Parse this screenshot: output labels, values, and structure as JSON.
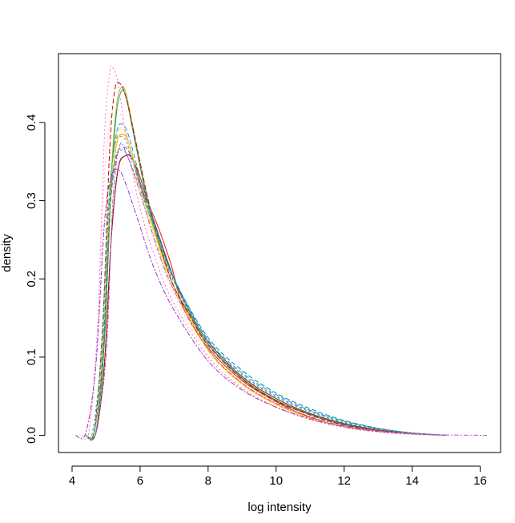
{
  "chart_data": {
    "type": "line",
    "title": "",
    "xlabel": "log intensity",
    "ylabel": "density",
    "xlim": [
      3.6,
      16.6
    ],
    "ylim": [
      -0.022,
      0.488
    ],
    "xticks": [
      4,
      6,
      8,
      10,
      12,
      14,
      16
    ],
    "yticks": [
      0.0,
      0.1,
      0.2,
      0.3,
      0.4
    ],
    "x_tick_labels": [
      "4",
      "6",
      "8",
      "10",
      "12",
      "14",
      "16"
    ],
    "y_tick_labels": [
      "0.0",
      "0.1",
      "0.2",
      "0.3",
      "0.4"
    ],
    "grid": false,
    "legend": "none",
    "series": [
      {
        "color": "#e41a1c",
        "dash": "none",
        "values": [
          [
            4.4,
            0
          ],
          [
            4.7,
            0.003
          ],
          [
            4.95,
            0.09
          ],
          [
            5.15,
            0.25
          ],
          [
            5.35,
            0.34
          ],
          [
            5.6,
            0.358
          ],
          [
            5.8,
            0.352
          ],
          [
            6.1,
            0.31
          ],
          [
            6.5,
            0.27
          ],
          [
            6.9,
            0.22
          ],
          [
            7.3,
            0.16
          ],
          [
            8,
            0.112
          ],
          [
            9,
            0.07
          ],
          [
            10,
            0.043
          ],
          [
            11,
            0.023
          ],
          [
            12,
            0.011
          ],
          [
            13,
            0.005
          ],
          [
            14,
            0.002
          ],
          [
            15,
            0
          ]
        ]
      },
      {
        "color": "#8b1a1a",
        "dash": "none",
        "values": [
          [
            4.4,
            0
          ],
          [
            4.7,
            0.003
          ],
          [
            4.95,
            0.09
          ],
          [
            5.15,
            0.25
          ],
          [
            5.35,
            0.34
          ],
          [
            5.55,
            0.357
          ],
          [
            5.75,
            0.355
          ],
          [
            6,
            0.33
          ],
          [
            6.4,
            0.275
          ],
          [
            7,
            0.2
          ],
          [
            7.5,
            0.155
          ],
          [
            8,
            0.12
          ],
          [
            9,
            0.075
          ],
          [
            10,
            0.047
          ],
          [
            11,
            0.028
          ],
          [
            12,
            0.015
          ],
          [
            13,
            0.007
          ],
          [
            14,
            0.003
          ],
          [
            15,
            0
          ]
        ]
      },
      {
        "color": "#9acd32",
        "dash": "none",
        "values": [
          [
            4.4,
            0
          ],
          [
            4.7,
            0.004
          ],
          [
            4.95,
            0.12
          ],
          [
            5.15,
            0.33
          ],
          [
            5.3,
            0.42
          ],
          [
            5.45,
            0.445
          ],
          [
            5.6,
            0.435
          ],
          [
            5.9,
            0.37
          ],
          [
            6.3,
            0.29
          ],
          [
            6.9,
            0.2
          ],
          [
            7.5,
            0.15
          ],
          [
            8,
            0.115
          ],
          [
            9,
            0.072
          ],
          [
            10,
            0.044
          ],
          [
            11,
            0.026
          ],
          [
            12,
            0.013
          ],
          [
            13,
            0.006
          ],
          [
            14,
            0.002
          ],
          [
            15,
            0
          ]
        ]
      },
      {
        "color": "#2e8b57",
        "dash": "none",
        "values": [
          [
            4.4,
            0
          ],
          [
            4.7,
            0.004
          ],
          [
            4.95,
            0.12
          ],
          [
            5.15,
            0.32
          ],
          [
            5.3,
            0.41
          ],
          [
            5.45,
            0.44
          ],
          [
            5.6,
            0.43
          ],
          [
            5.9,
            0.365
          ],
          [
            6.3,
            0.285
          ],
          [
            6.9,
            0.2
          ],
          [
            7.5,
            0.152
          ],
          [
            8,
            0.117
          ],
          [
            9,
            0.073
          ],
          [
            10,
            0.045
          ],
          [
            11,
            0.027
          ],
          [
            12,
            0.014
          ],
          [
            13,
            0.006
          ],
          [
            14,
            0.002
          ],
          [
            15,
            0
          ]
        ]
      },
      {
        "color": "#ffa500",
        "dash": "none",
        "values": [
          [
            4.4,
            0
          ],
          [
            4.65,
            0.004
          ],
          [
            4.9,
            0.1
          ],
          [
            5.1,
            0.28
          ],
          [
            5.3,
            0.37
          ],
          [
            5.5,
            0.385
          ],
          [
            5.7,
            0.37
          ],
          [
            6,
            0.32
          ],
          [
            6.5,
            0.25
          ],
          [
            7,
            0.19
          ],
          [
            8,
            0.11
          ],
          [
            9,
            0.066
          ],
          [
            10,
            0.04
          ],
          [
            11,
            0.022
          ],
          [
            12,
            0.011
          ],
          [
            13,
            0.005
          ],
          [
            14,
            0.002
          ],
          [
            15,
            0
          ]
        ]
      },
      {
        "color": "#d00000",
        "dash": "6,3",
        "values": [
          [
            4.4,
            0
          ],
          [
            4.65,
            0.005
          ],
          [
            4.9,
            0.14
          ],
          [
            5.1,
            0.36
          ],
          [
            5.25,
            0.44
          ],
          [
            5.4,
            0.45
          ],
          [
            5.6,
            0.43
          ],
          [
            5.9,
            0.37
          ],
          [
            6.3,
            0.29
          ],
          [
            6.9,
            0.2
          ],
          [
            7.5,
            0.15
          ],
          [
            8,
            0.115
          ],
          [
            9,
            0.072
          ],
          [
            10,
            0.044
          ],
          [
            11,
            0.026
          ],
          [
            12,
            0.013
          ],
          [
            13,
            0.006
          ],
          [
            14,
            0.002
          ],
          [
            15,
            0
          ]
        ]
      },
      {
        "color": "#1e90ff",
        "dash": "6,3",
        "values": [
          [
            4.4,
            0
          ],
          [
            4.65,
            0.004
          ],
          [
            4.9,
            0.12
          ],
          [
            5.1,
            0.31
          ],
          [
            5.3,
            0.385
          ],
          [
            5.45,
            0.398
          ],
          [
            5.65,
            0.385
          ],
          [
            6,
            0.33
          ],
          [
            6.5,
            0.26
          ],
          [
            7,
            0.2
          ],
          [
            8,
            0.122
          ],
          [
            9,
            0.08
          ],
          [
            10,
            0.052
          ],
          [
            11,
            0.032
          ],
          [
            12,
            0.018
          ],
          [
            13,
            0.009
          ],
          [
            14,
            0.003
          ],
          [
            15,
            0
          ]
        ]
      },
      {
        "color": "#ffd700",
        "dash": "6,3",
        "values": [
          [
            4.4,
            0
          ],
          [
            4.65,
            0.004
          ],
          [
            4.9,
            0.11
          ],
          [
            5.1,
            0.3
          ],
          [
            5.3,
            0.38
          ],
          [
            5.5,
            0.392
          ],
          [
            5.7,
            0.37
          ],
          [
            6,
            0.315
          ],
          [
            6.5,
            0.245
          ],
          [
            7,
            0.185
          ],
          [
            8,
            0.108
          ],
          [
            9,
            0.065
          ],
          [
            10,
            0.039
          ],
          [
            11,
            0.022
          ],
          [
            12,
            0.011
          ],
          [
            13,
            0.005
          ],
          [
            14,
            0.002
          ],
          [
            15,
            0
          ]
        ]
      },
      {
        "color": "#008b8b",
        "dash": "6,3",
        "values": [
          [
            4.4,
            0
          ],
          [
            4.65,
            0.004
          ],
          [
            4.9,
            0.1
          ],
          [
            5.1,
            0.28
          ],
          [
            5.3,
            0.355
          ],
          [
            5.5,
            0.368
          ],
          [
            5.7,
            0.36
          ],
          [
            6,
            0.32
          ],
          [
            6.5,
            0.26
          ],
          [
            7,
            0.2
          ],
          [
            8,
            0.125
          ],
          [
            9,
            0.083
          ],
          [
            10,
            0.054
          ],
          [
            11,
            0.034
          ],
          [
            12,
            0.019
          ],
          [
            13,
            0.009
          ],
          [
            14,
            0.003
          ],
          [
            15,
            0
          ]
        ]
      },
      {
        "color": "#4682b4",
        "dash": "3,3",
        "values": [
          [
            4.4,
            0
          ],
          [
            4.6,
            0.004
          ],
          [
            4.85,
            0.1
          ],
          [
            5.05,
            0.27
          ],
          [
            5.25,
            0.35
          ],
          [
            5.45,
            0.365
          ],
          [
            5.65,
            0.355
          ],
          [
            6,
            0.315
          ],
          [
            6.5,
            0.255
          ],
          [
            7,
            0.197
          ],
          [
            8,
            0.12
          ],
          [
            9,
            0.078
          ],
          [
            10,
            0.05
          ],
          [
            11,
            0.031
          ],
          [
            12,
            0.017
          ],
          [
            13,
            0.008
          ],
          [
            14,
            0.003
          ],
          [
            15,
            0
          ]
        ]
      },
      {
        "color": "#3cb371",
        "dash": "3,3",
        "values": [
          [
            4.4,
            0
          ],
          [
            4.6,
            0.004
          ],
          [
            4.85,
            0.1
          ],
          [
            5.05,
            0.28
          ],
          [
            5.25,
            0.37
          ],
          [
            5.45,
            0.382
          ],
          [
            5.65,
            0.37
          ],
          [
            6,
            0.32
          ],
          [
            6.5,
            0.255
          ],
          [
            7,
            0.195
          ],
          [
            8,
            0.118
          ],
          [
            9,
            0.076
          ],
          [
            10,
            0.049
          ],
          [
            11,
            0.03
          ],
          [
            12,
            0.016
          ],
          [
            13,
            0.008
          ],
          [
            14,
            0.003
          ],
          [
            15,
            0
          ]
        ]
      },
      {
        "color": "#ff69b4",
        "dash": "2,3",
        "values": [
          [
            4.3,
            0
          ],
          [
            4.5,
            0.006
          ],
          [
            4.75,
            0.14
          ],
          [
            4.95,
            0.38
          ],
          [
            5.1,
            0.462
          ],
          [
            5.2,
            0.47
          ],
          [
            5.35,
            0.45
          ],
          [
            5.6,
            0.38
          ],
          [
            6,
            0.29
          ],
          [
            6.5,
            0.22
          ],
          [
            7,
            0.168
          ],
          [
            8,
            0.1
          ],
          [
            9,
            0.06
          ],
          [
            10,
            0.036
          ],
          [
            11,
            0.02
          ],
          [
            12,
            0.01
          ],
          [
            13,
            0.004
          ],
          [
            14,
            0.001
          ],
          [
            15,
            0
          ]
        ]
      },
      {
        "color": "#ffc0cb",
        "dash": "2,3",
        "values": [
          [
            4.3,
            0
          ],
          [
            4.5,
            0.005
          ],
          [
            4.75,
            0.12
          ],
          [
            4.95,
            0.33
          ],
          [
            5.15,
            0.41
          ],
          [
            5.3,
            0.42
          ],
          [
            5.5,
            0.4
          ],
          [
            5.9,
            0.33
          ],
          [
            6.4,
            0.25
          ],
          [
            7,
            0.18
          ],
          [
            8,
            0.102
          ],
          [
            9,
            0.061
          ],
          [
            10,
            0.037
          ],
          [
            11,
            0.021
          ],
          [
            12,
            0.011
          ],
          [
            13,
            0.005
          ],
          [
            14,
            0.002
          ],
          [
            15,
            0
          ]
        ]
      },
      {
        "color": "#9932cc",
        "dash": "6,2,2,2",
        "values": [
          [
            4.1,
            0
          ],
          [
            4.4,
            0.003
          ],
          [
            4.7,
            0.09
          ],
          [
            4.95,
            0.27
          ],
          [
            5.15,
            0.33
          ],
          [
            5.35,
            0.34
          ],
          [
            5.55,
            0.325
          ],
          [
            5.9,
            0.28
          ],
          [
            6.4,
            0.215
          ],
          [
            7,
            0.16
          ],
          [
            8,
            0.095
          ],
          [
            9,
            0.058
          ],
          [
            10,
            0.036
          ],
          [
            11,
            0.021
          ],
          [
            12,
            0.011
          ],
          [
            13,
            0.005
          ],
          [
            14,
            0.002
          ],
          [
            15,
            0
          ]
        ]
      },
      {
        "color": "#ba55d3",
        "dash": "6,2,2,2",
        "values": [
          [
            4.7,
            0.002
          ],
          [
            5,
            0.1
          ],
          [
            5.2,
            0.3
          ],
          [
            5.4,
            0.37
          ],
          [
            5.6,
            0.36
          ],
          [
            6,
            0.31
          ],
          [
            6.5,
            0.24
          ],
          [
            7,
            0.185
          ],
          [
            8,
            0.11
          ],
          [
            9,
            0.067
          ],
          [
            10,
            0.041
          ],
          [
            11,
            0.024
          ],
          [
            12,
            0.012
          ],
          [
            13,
            0.006
          ],
          [
            14,
            0.002
          ],
          [
            15,
            0.0005
          ],
          [
            16.2,
            0
          ]
        ]
      }
    ]
  }
}
